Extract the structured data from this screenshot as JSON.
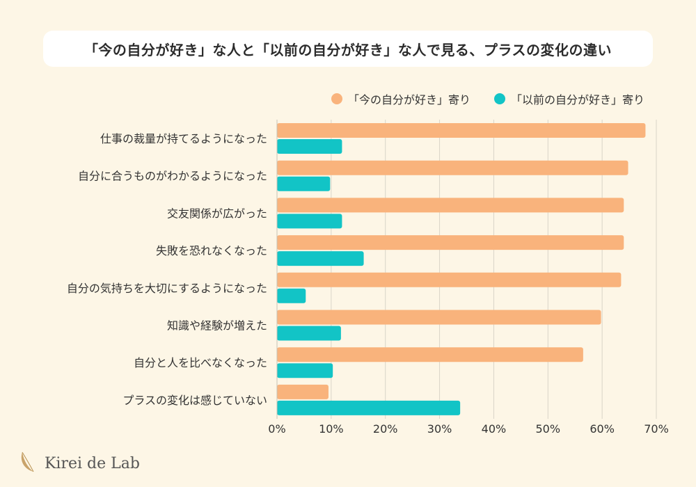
{
  "title": "「今の自分が好き」な人と「以前の自分が好き」な人で見る、プラスの変化の違い",
  "brand": {
    "name": "Kirei de Lab",
    "logo_icon": "leaf-logo-icon"
  },
  "colors": {
    "now": "#f9b37c",
    "past": "#12c4c6",
    "grid": "#d9d4c8",
    "background": "#fdf6e6"
  },
  "chart_data": {
    "type": "bar",
    "orientation": "horizontal",
    "categories": [
      "仕事の裁量が持てるようになった",
      "自分に合うものがわかるようになった",
      "交友関係が広がった",
      "失敗を恐れなくなった",
      "自分の気持ちを大切にするようになった",
      "知識や経験が増えた",
      "自分と人を比べなくなった",
      "プラスの変化は感じていない"
    ],
    "series": [
      {
        "name": "「今の自分が好き」寄り",
        "color": "#f9b37c",
        "values": [
          68,
          64.8,
          64,
          64,
          63.5,
          59.8,
          56.5,
          9.5
        ]
      },
      {
        "name": "「以前の自分が好き」寄り",
        "color": "#12c4c6",
        "values": [
          12,
          9.8,
          12,
          16,
          5.3,
          11.8,
          10.3,
          33.8
        ]
      }
    ],
    "xlim": [
      0,
      70
    ],
    "x_ticks": [
      "0%",
      "10%",
      "20%",
      "30%",
      "40%",
      "50%",
      "60%",
      "70%"
    ],
    "x_tick_values": [
      0,
      10,
      20,
      30,
      40,
      50,
      60,
      70
    ],
    "grid": true,
    "legend_position": "top-right"
  }
}
